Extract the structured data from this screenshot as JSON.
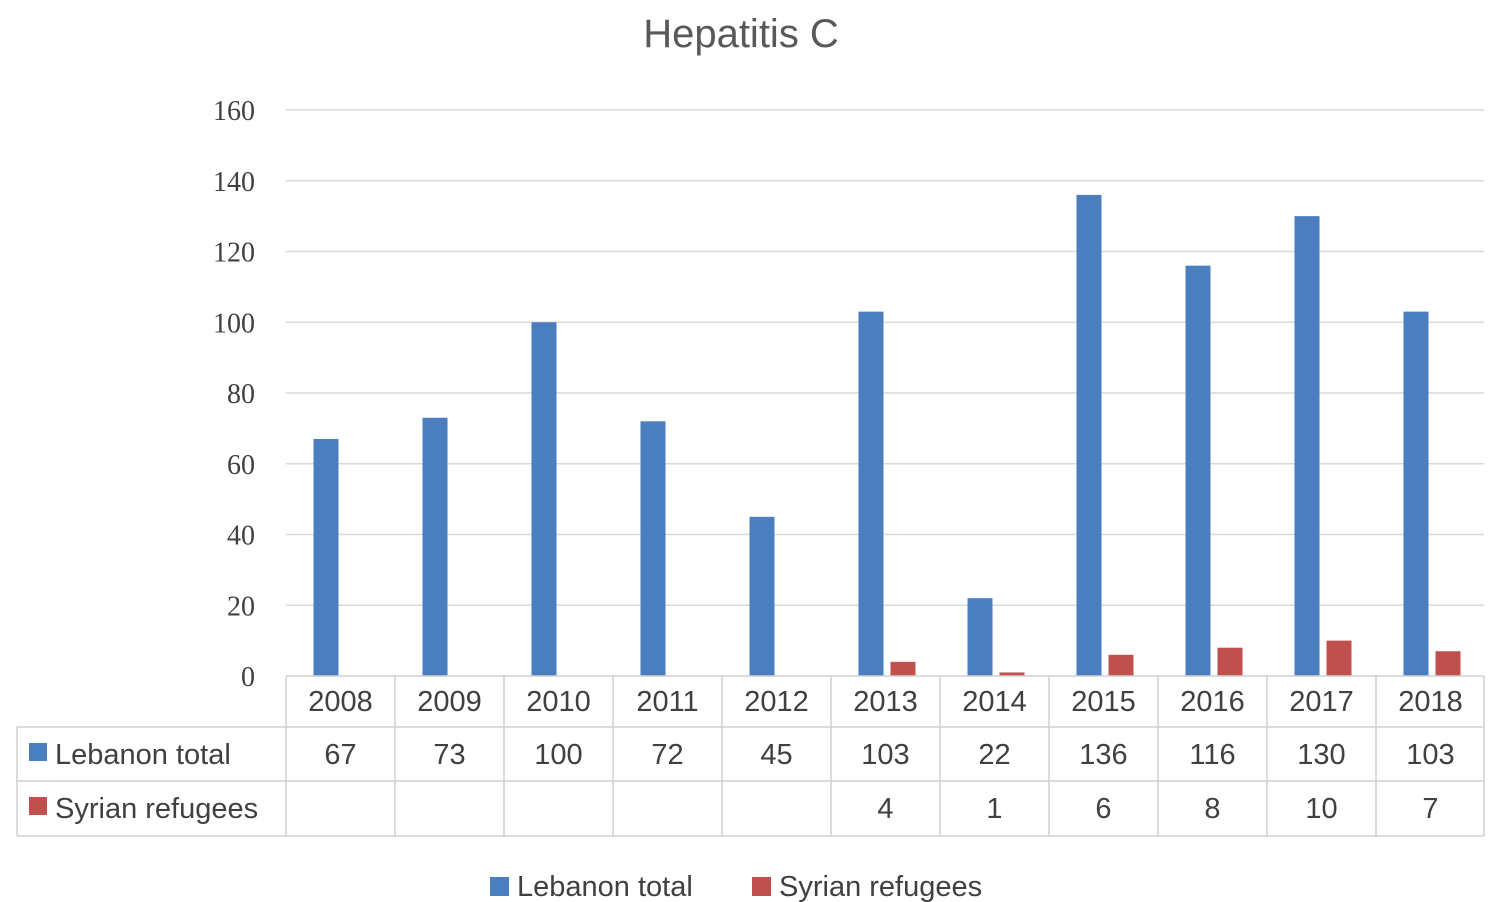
{
  "chart_data": {
    "type": "bar",
    "title": "Hepatitis C",
    "categories": [
      "2008",
      "2009",
      "2010",
      "2011",
      "2012",
      "2013",
      "2014",
      "2015",
      "2016",
      "2017",
      "2018"
    ],
    "series": [
      {
        "name": "Lebanon total",
        "color": "#4a7ebf",
        "values": [
          67,
          73,
          100,
          72,
          45,
          103,
          22,
          136,
          116,
          130,
          103
        ]
      },
      {
        "name": "Syrian refugees",
        "color": "#c0504d",
        "values": [
          null,
          null,
          null,
          null,
          null,
          4,
          1,
          6,
          8,
          10,
          7
        ]
      }
    ],
    "ylim": [
      0,
      160
    ],
    "yticks": [
      0,
      20,
      40,
      60,
      80,
      100,
      120,
      140,
      160
    ],
    "grid": true,
    "legend": "bottom",
    "data_table": true
  }
}
